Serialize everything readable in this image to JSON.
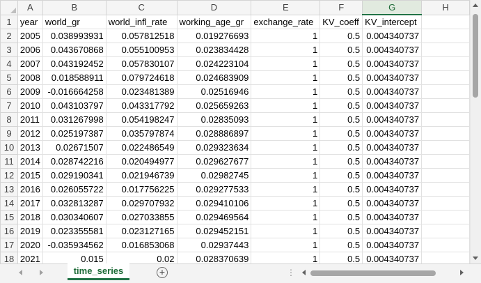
{
  "columns": [
    "A",
    "B",
    "C",
    "D",
    "E",
    "F",
    "G",
    "H"
  ],
  "active_column": "G",
  "rows": [
    {
      "row": "1",
      "cells": [
        "year",
        "world_gr",
        "world_infl_rate",
        "working_age_gr",
        "exchange_rate",
        "KV_coeff",
        "KV_intercept",
        ""
      ]
    },
    {
      "row": "2",
      "cells": [
        "2005",
        "0.038993931",
        "0.057812518",
        "0.019276693",
        "1",
        "0.5",
        "0.004340737",
        ""
      ]
    },
    {
      "row": "3",
      "cells": [
        "2006",
        "0.043670868",
        "0.055100953",
        "0.023834428",
        "1",
        "0.5",
        "0.004340737",
        ""
      ]
    },
    {
      "row": "4",
      "cells": [
        "2007",
        "0.043192452",
        "0.057830107",
        "0.024223104",
        "1",
        "0.5",
        "0.004340737",
        ""
      ]
    },
    {
      "row": "5",
      "cells": [
        "2008",
        "0.018588911",
        "0.079724618",
        "0.024683909",
        "1",
        "0.5",
        "0.004340737",
        ""
      ]
    },
    {
      "row": "6",
      "cells": [
        "2009",
        "-0.016664258",
        "0.023481389",
        "0.02516946",
        "1",
        "0.5",
        "0.004340737",
        ""
      ]
    },
    {
      "row": "7",
      "cells": [
        "2010",
        "0.043103797",
        "0.043317792",
        "0.025659263",
        "1",
        "0.5",
        "0.004340737",
        ""
      ]
    },
    {
      "row": "8",
      "cells": [
        "2011",
        "0.031267998",
        "0.054198247",
        "0.02835093",
        "1",
        "0.5",
        "0.004340737",
        ""
      ]
    },
    {
      "row": "9",
      "cells": [
        "2012",
        "0.025197387",
        "0.035797874",
        "0.028886897",
        "1",
        "0.5",
        "0.004340737",
        ""
      ]
    },
    {
      "row": "10",
      "cells": [
        "2013",
        "0.02671507",
        "0.022486549",
        "0.029323634",
        "1",
        "0.5",
        "0.004340737",
        ""
      ]
    },
    {
      "row": "11",
      "cells": [
        "2014",
        "0.028742216",
        "0.020494977",
        "0.029627677",
        "1",
        "0.5",
        "0.004340737",
        ""
      ]
    },
    {
      "row": "12",
      "cells": [
        "2015",
        "0.029190341",
        "0.021946739",
        "0.02982745",
        "1",
        "0.5",
        "0.004340737",
        ""
      ]
    },
    {
      "row": "13",
      "cells": [
        "2016",
        "0.026055722",
        "0.017756225",
        "0.029277533",
        "1",
        "0.5",
        "0.004340737",
        ""
      ]
    },
    {
      "row": "14",
      "cells": [
        "2017",
        "0.032813287",
        "0.029707932",
        "0.029410106",
        "1",
        "0.5",
        "0.004340737",
        ""
      ]
    },
    {
      "row": "15",
      "cells": [
        "2018",
        "0.030340607",
        "0.027033855",
        "0.029469564",
        "1",
        "0.5",
        "0.004340737",
        ""
      ]
    },
    {
      "row": "16",
      "cells": [
        "2019",
        "0.023355581",
        "0.023127165",
        "0.029452151",
        "1",
        "0.5",
        "0.004340737",
        ""
      ]
    },
    {
      "row": "17",
      "cells": [
        "2020",
        "-0.035934562",
        "0.016853068",
        "0.02937443",
        "1",
        "0.5",
        "0.004340737",
        ""
      ]
    },
    {
      "row": "18",
      "cells": [
        "2021",
        "0.015",
        "0.02",
        "0.028370639",
        "1",
        "0.5",
        "0.004340737",
        ""
      ]
    }
  ],
  "sheet_tab": {
    "label": "time_series"
  },
  "add_sheet_symbol": "+",
  "tab_split_symbol": "⋮",
  "colors": {
    "accent": "#217346",
    "header_bg": "#f5f5f5",
    "grid_line": "#e1e1e1"
  }
}
